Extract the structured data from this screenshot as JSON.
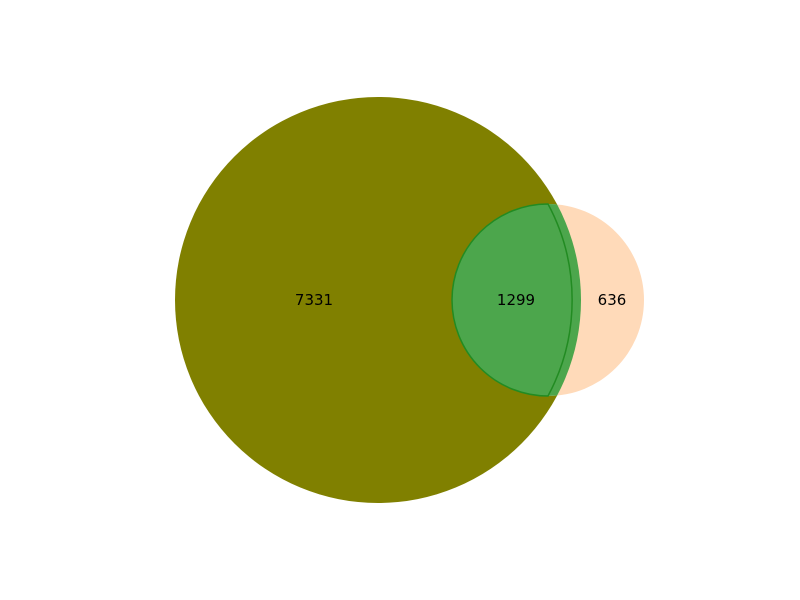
{
  "diagram": {
    "type": "venn2",
    "sets": [
      {
        "id": "A",
        "name": "",
        "color": "#808000"
      },
      {
        "id": "B",
        "name": "",
        "color": "#ffdab9"
      }
    ],
    "regions": {
      "a_only": {
        "label": "7331",
        "value": 7331
      },
      "intersection": {
        "label": "1299",
        "value": 1299,
        "color": "#4ca64c"
      },
      "b_only": {
        "label": "636",
        "value": 636
      }
    },
    "outline_color": "#228b22"
  }
}
